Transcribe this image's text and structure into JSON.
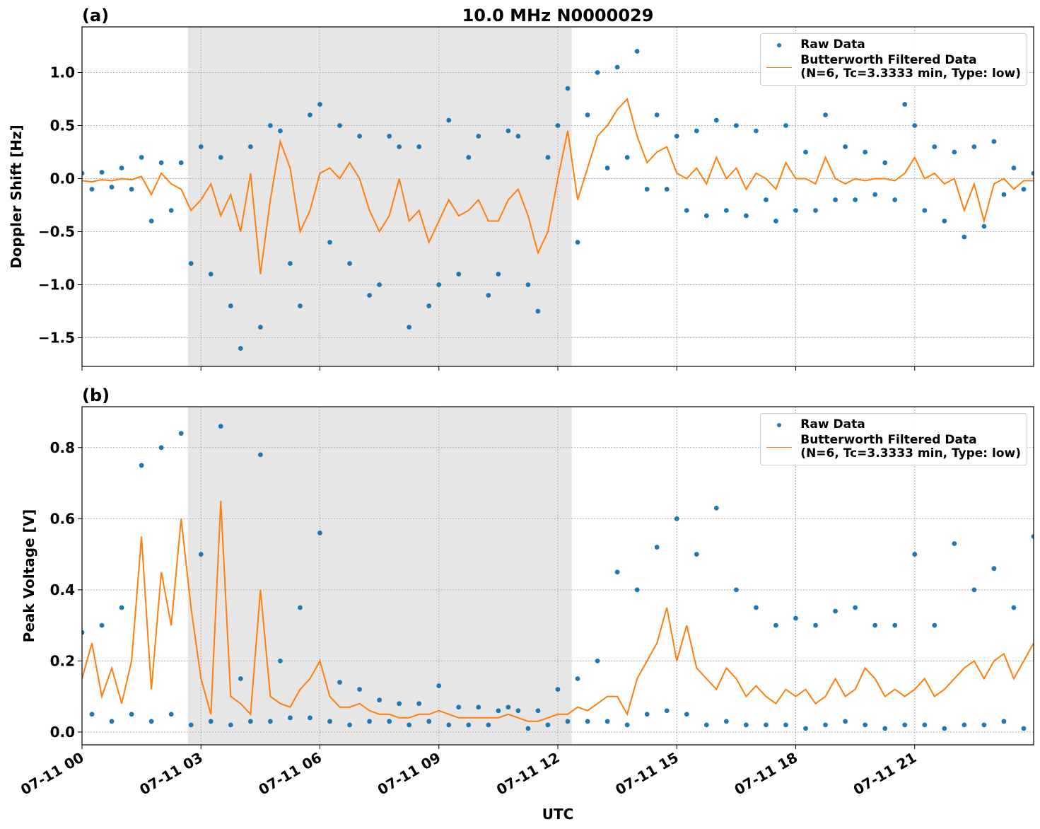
{
  "chart_data": [
    {
      "type": "line",
      "label": "(a)",
      "title": "10.0 MHz N0000029",
      "ylabel": "Doppler Shift [Hz]",
      "xlim": [
        0,
        24
      ],
      "ylim": [
        -1.77,
        1.43
      ],
      "grid": true,
      "legend": "upper right",
      "shade": [
        2.67,
        12.35
      ],
      "xtick_labels": false,
      "xticks": [
        0,
        3,
        6,
        9,
        12,
        15,
        18,
        21
      ],
      "yticks": [
        {
          "value": -1.5,
          "label": "−1.5"
        },
        {
          "value": -1,
          "label": "−1.0"
        },
        {
          "value": -0.5,
          "label": "−0.5"
        },
        {
          "value": 0,
          "label": "0.0"
        },
        {
          "value": 0.5,
          "label": "0.5"
        },
        {
          "value": 1,
          "label": "1.0"
        }
      ],
      "x": [
        0,
        0.25,
        0.5,
        0.75,
        1,
        1.25,
        1.5,
        1.75,
        2,
        2.25,
        2.5,
        2.75,
        3,
        3.25,
        3.5,
        3.75,
        4,
        4.25,
        4.5,
        4.75,
        5,
        5.25,
        5.5,
        5.75,
        6,
        6.25,
        6.5,
        6.75,
        7,
        7.25,
        7.5,
        7.75,
        8,
        8.25,
        8.5,
        8.75,
        9,
        9.25,
        9.5,
        9.75,
        10,
        10.25,
        10.5,
        10.75,
        11,
        11.25,
        11.5,
        11.75,
        12,
        12.25,
        12.5,
        12.75,
        13,
        13.25,
        13.5,
        13.75,
        14,
        14.25,
        14.5,
        14.75,
        15,
        15.25,
        15.5,
        15.75,
        16,
        16.25,
        16.5,
        16.75,
        17,
        17.25,
        17.5,
        17.75,
        18,
        18.25,
        18.5,
        18.75,
        19,
        19.25,
        19.5,
        19.75,
        20,
        20.25,
        20.5,
        20.75,
        21,
        21.25,
        21.5,
        21.75,
        22,
        22.25,
        22.5,
        22.75,
        23,
        23.25,
        23.5,
        23.75,
        24
      ],
      "series": [
        {
          "name": "Raw Data",
          "type": "scatter",
          "color": "#1f77b4",
          "values": [
            0.05,
            -0.1,
            0.06,
            -0.08,
            0.1,
            -0.1,
            0.2,
            -0.4,
            0.15,
            -0.3,
            0.15,
            -0.8,
            0.3,
            -0.9,
            0.2,
            -1.2,
            -1.6,
            0.3,
            -1.4,
            0.5,
            0.45,
            -0.8,
            -1.2,
            0.6,
            0.7,
            -0.6,
            0.5,
            -0.8,
            0.4,
            -1.1,
            -1.0,
            0.4,
            0.3,
            -1.4,
            0.3,
            -1.2,
            -1.0,
            0.55,
            -0.9,
            0.2,
            0.4,
            -1.1,
            -0.9,
            0.45,
            0.4,
            -1.0,
            -1.25,
            0.2,
            0.5,
            0.85,
            -0.6,
            0.6,
            1.0,
            0.1,
            1.05,
            0.2,
            1.2,
            -0.1,
            0.6,
            -0.1,
            0.4,
            -0.3,
            0.45,
            -0.35,
            0.55,
            -0.3,
            0.5,
            -0.35,
            0.45,
            -0.2,
            -0.4,
            0.5,
            -0.3,
            0.25,
            -0.3,
            0.6,
            -0.2,
            0.3,
            -0.2,
            0.25,
            -0.15,
            0.15,
            -0.2,
            0.7,
            0.5,
            -0.3,
            0.3,
            -0.4,
            0.25,
            -0.55,
            0.3,
            -0.45,
            0.35,
            -0.15,
            0.1,
            -0.1,
            0.05
          ]
        },
        {
          "name": "Butterworth Filtered Data\n(N=6, Tc=3.3333 min, Type: low)",
          "type": "line",
          "color": "#ff7f0e",
          "values": [
            -0.02,
            -0.03,
            -0.01,
            -0.02,
            0.0,
            -0.01,
            0.02,
            -0.15,
            0.05,
            -0.05,
            -0.1,
            -0.3,
            -0.2,
            -0.05,
            -0.35,
            -0.15,
            -0.5,
            0.05,
            -0.9,
            -0.2,
            0.35,
            0.1,
            -0.5,
            -0.3,
            0.05,
            0.1,
            0.0,
            0.15,
            0.0,
            -0.3,
            -0.5,
            -0.35,
            0.0,
            -0.4,
            -0.3,
            -0.6,
            -0.4,
            -0.2,
            -0.35,
            -0.3,
            -0.2,
            -0.4,
            -0.4,
            -0.2,
            -0.1,
            -0.35,
            -0.7,
            -0.5,
            0.0,
            0.45,
            -0.2,
            0.1,
            0.4,
            0.5,
            0.65,
            0.75,
            0.4,
            0.15,
            0.25,
            0.3,
            0.05,
            0.0,
            0.1,
            -0.05,
            0.2,
            0.0,
            0.1,
            -0.1,
            0.05,
            0.0,
            -0.1,
            0.15,
            0.0,
            0.0,
            -0.05,
            0.2,
            0.0,
            -0.05,
            0.0,
            -0.02,
            0.0,
            0.0,
            -0.02,
            0.05,
            0.2,
            0.0,
            0.05,
            -0.05,
            0.0,
            -0.3,
            -0.05,
            -0.4,
            -0.05,
            0.0,
            -0.1,
            -0.02,
            -0.02
          ]
        }
      ]
    },
    {
      "type": "line",
      "label": "(b)",
      "ylabel": "Peak Voltage [V]",
      "xlabel": "UTC",
      "xlim": [
        0,
        24
      ],
      "ylim": [
        -0.036,
        0.915
      ],
      "grid": true,
      "legend": "upper right",
      "shade": [
        2.67,
        12.35
      ],
      "xticks": [
        {
          "value": 0,
          "label": "07-11 00"
        },
        {
          "value": 3,
          "label": "07-11 03"
        },
        {
          "value": 6,
          "label": "07-11 06"
        },
        {
          "value": 9,
          "label": "07-11 09"
        },
        {
          "value": 12,
          "label": "07-11 12"
        },
        {
          "value": 15,
          "label": "07-11 15"
        },
        {
          "value": 18,
          "label": "07-11 18"
        },
        {
          "value": 21,
          "label": "07-11 21"
        }
      ],
      "yticks": [
        {
          "value": 0,
          "label": "0.0"
        },
        0.2,
        0.4,
        0.6,
        0.8
      ],
      "x": [
        0,
        0.25,
        0.5,
        0.75,
        1,
        1.25,
        1.5,
        1.75,
        2,
        2.25,
        2.5,
        2.75,
        3,
        3.25,
        3.5,
        3.75,
        4,
        4.25,
        4.5,
        4.75,
        5,
        5.25,
        5.5,
        5.75,
        6,
        6.25,
        6.5,
        6.75,
        7,
        7.25,
        7.5,
        7.75,
        8,
        8.25,
        8.5,
        8.75,
        9,
        9.25,
        9.5,
        9.75,
        10,
        10.25,
        10.5,
        10.75,
        11,
        11.25,
        11.5,
        11.75,
        12,
        12.25,
        12.5,
        12.75,
        13,
        13.25,
        13.5,
        13.75,
        14,
        14.25,
        14.5,
        14.75,
        15,
        15.25,
        15.5,
        15.75,
        16,
        16.25,
        16.5,
        16.75,
        17,
        17.25,
        17.5,
        17.75,
        18,
        18.25,
        18.5,
        18.75,
        19,
        19.25,
        19.5,
        19.75,
        20,
        20.25,
        20.5,
        20.75,
        21,
        21.25,
        21.5,
        21.75,
        22,
        22.25,
        22.5,
        22.75,
        23,
        23.25,
        23.5,
        23.75,
        24
      ],
      "series": [
        {
          "name": "Raw Data",
          "type": "scatter",
          "color": "#1f77b4",
          "values": [
            0.28,
            0.05,
            0.3,
            0.03,
            0.35,
            0.05,
            0.75,
            0.03,
            0.8,
            0.05,
            0.84,
            0.02,
            0.5,
            0.03,
            0.86,
            0.02,
            0.15,
            0.03,
            0.78,
            0.03,
            0.2,
            0.04,
            0.35,
            0.04,
            0.56,
            0.03,
            0.14,
            0.02,
            0.12,
            0.03,
            0.09,
            0.03,
            0.08,
            0.02,
            0.08,
            0.03,
            0.13,
            0.02,
            0.07,
            0.02,
            0.07,
            0.02,
            0.06,
            0.07,
            0.06,
            0.01,
            0.06,
            0.02,
            0.12,
            0.03,
            0.15,
            0.03,
            0.2,
            0.03,
            0.45,
            0.02,
            0.4,
            0.05,
            0.52,
            0.06,
            0.6,
            0.05,
            0.5,
            0.02,
            0.63,
            0.03,
            0.4,
            0.02,
            0.35,
            0.02,
            0.3,
            0.02,
            0.32,
            0.01,
            0.3,
            0.02,
            0.34,
            0.03,
            0.35,
            0.02,
            0.3,
            0.01,
            0.3,
            0.02,
            0.5,
            0.02,
            0.3,
            0.01,
            0.53,
            0.02,
            0.4,
            0.02,
            0.46,
            0.03,
            0.35,
            0.01,
            0.55
          ]
        },
        {
          "name": "Butterworth Filtered Data\n(N=6, Tc=3.3333 min, Type: low)",
          "type": "line",
          "color": "#ff7f0e",
          "values": [
            0.15,
            0.25,
            0.1,
            0.18,
            0.08,
            0.2,
            0.55,
            0.12,
            0.45,
            0.3,
            0.6,
            0.35,
            0.15,
            0.05,
            0.65,
            0.1,
            0.08,
            0.05,
            0.4,
            0.1,
            0.08,
            0.07,
            0.12,
            0.15,
            0.2,
            0.1,
            0.07,
            0.07,
            0.08,
            0.06,
            0.05,
            0.05,
            0.04,
            0.04,
            0.05,
            0.05,
            0.06,
            0.05,
            0.04,
            0.04,
            0.04,
            0.04,
            0.04,
            0.05,
            0.04,
            0.03,
            0.03,
            0.04,
            0.05,
            0.05,
            0.07,
            0.06,
            0.08,
            0.1,
            0.1,
            0.05,
            0.15,
            0.2,
            0.25,
            0.35,
            0.2,
            0.3,
            0.18,
            0.15,
            0.12,
            0.18,
            0.15,
            0.1,
            0.13,
            0.1,
            0.08,
            0.12,
            0.1,
            0.12,
            0.08,
            0.1,
            0.15,
            0.1,
            0.12,
            0.18,
            0.15,
            0.1,
            0.12,
            0.1,
            0.12,
            0.15,
            0.1,
            0.12,
            0.15,
            0.18,
            0.2,
            0.15,
            0.2,
            0.22,
            0.15,
            0.2,
            0.25
          ]
        }
      ]
    }
  ]
}
